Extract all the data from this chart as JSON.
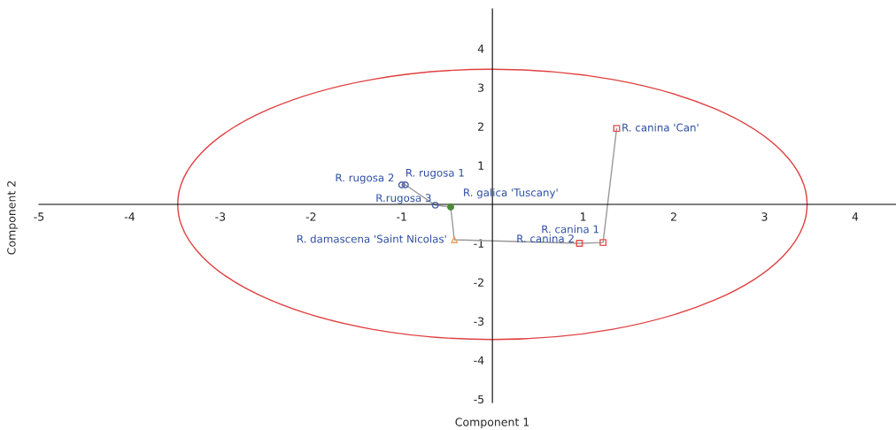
{
  "chart_data": {
    "type": "scatter",
    "xlabel": "Component 1",
    "ylabel": "Component 2",
    "xlim": [
      -5.0,
      4.45
    ],
    "ylim": [
      -5.09,
      5.02
    ],
    "xticks": [
      -5,
      -4,
      -3,
      -2,
      -1,
      1,
      2,
      3,
      4
    ],
    "yticks": [
      -5,
      -4,
      -3,
      -2,
      -1,
      1,
      2,
      3,
      4
    ],
    "grid": false,
    "series": [
      {
        "type": "line",
        "color": "#999999",
        "marker": "none",
        "x": [
          1.37,
          1.22,
          0.96,
          -0.42,
          -0.46,
          -0.63,
          -0.96,
          -1.0
        ],
        "values": [
          1.95,
          -0.98,
          -1.0,
          -0.91,
          -0.07,
          -0.02,
          0.5,
          0.5
        ]
      },
      {
        "color": "#e05050",
        "marker": "square",
        "x": [
          1.37,
          1.22,
          0.96
        ],
        "values": [
          1.95,
          -0.98,
          -1.0
        ]
      },
      {
        "color": "#f0a060",
        "marker": "triangle",
        "x": [
          -0.42
        ],
        "values": [
          -0.91
        ]
      },
      {
        "color": "#4a8a3a",
        "marker": "circle",
        "x": [
          -0.46
        ],
        "values": [
          -0.07
        ]
      },
      {
        "color": "#4a5fa8",
        "marker": "circle",
        "x": [
          -0.63,
          -0.96,
          -1.0
        ],
        "values": [
          -0.02,
          0.5,
          0.5
        ]
      }
    ],
    "annotations": [
      {
        "text": "R. canina 'Can'",
        "x": 1.37,
        "y": 1.95
      },
      {
        "text": "R. canina 1",
        "x": 1.22,
        "y": -0.98
      },
      {
        "text": "R. canina 2",
        "x": 0.96,
        "y": -1.0
      },
      {
        "text": "R. damascena 'Saint Nicolas'",
        "x": -0.42,
        "y": -0.91
      },
      {
        "text": "R. galica 'Tuscany'",
        "x": -0.46,
        "y": -0.07
      },
      {
        "text": "R.rugosa 3",
        "x": -0.63,
        "y": -0.02
      },
      {
        "text": "R. rugosa 1",
        "x": -0.96,
        "y": 0.5
      },
      {
        "text": "R. rugosa 2",
        "x": -1.0,
        "y": 0.5
      }
    ]
  }
}
